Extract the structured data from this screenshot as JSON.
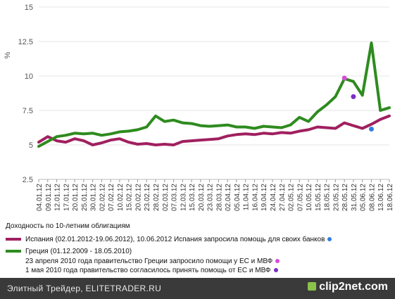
{
  "chart_data": {
    "type": "line",
    "title": "",
    "ylabel": "%",
    "ylim": [
      2.5,
      15
    ],
    "yticks": [
      2.5,
      5,
      7.5,
      10,
      12.5,
      15
    ],
    "grid": true,
    "categories": [
      "04.01.12",
      "09.01.12",
      "12.01.12",
      "17.01.12",
      "20.01.12",
      "25.01.12",
      "30.01.12",
      "02.02.12",
      "07.02.12",
      "10.02.12",
      "15.02.12",
      "20.02.12",
      "23.02.12",
      "28.02.12",
      "02.03.12",
      "07.03.12",
      "12.03.12",
      "15.03.12",
      "20.03.12",
      "23.03.12",
      "28.03.12",
      "02.04.12",
      "05.04.12",
      "11.04.12",
      "16.04.12",
      "19.04.12",
      "24.04.12",
      "27.04.12",
      "02.05.12",
      "07.05.12",
      "10.05.12",
      "15.05.12",
      "18.05.12",
      "23.05.12",
      "28.05.12",
      "31.05.12",
      "05.06.12",
      "08.06.12",
      "13.06.12",
      "18.06.12"
    ],
    "series": [
      {
        "name": "Испания (02.01.2012-19.06.2012), 10.06.2012 Испания запросила помощь для своих банков",
        "color": "#a0205f",
        "values": [
          5.2,
          5.6,
          5.3,
          5.2,
          5.45,
          5.3,
          5.0,
          5.15,
          5.35,
          5.45,
          5.2,
          5.05,
          5.1,
          5.0,
          5.05,
          5.0,
          5.25,
          5.3,
          5.35,
          5.4,
          5.45,
          5.65,
          5.75,
          5.8,
          5.75,
          5.85,
          5.8,
          5.9,
          5.85,
          6.0,
          6.1,
          6.3,
          6.25,
          6.2,
          6.6,
          6.4,
          6.2,
          6.5,
          6.85,
          7.1
        ]
      },
      {
        "name": "Греция (01.12.2009 - 18.05.2010)",
        "color": "#2e8b1f",
        "values": [
          4.9,
          5.25,
          5.6,
          5.7,
          5.85,
          5.8,
          5.85,
          5.7,
          5.8,
          5.95,
          6.0,
          6.1,
          6.3,
          7.1,
          6.7,
          6.8,
          6.6,
          6.55,
          6.4,
          6.35,
          6.4,
          6.45,
          6.3,
          6.3,
          6.2,
          6.35,
          6.3,
          6.25,
          6.45,
          7.0,
          6.7,
          7.4,
          7.9,
          8.5,
          9.8,
          9.6,
          8.6,
          12.4,
          7.5,
          7.7
        ]
      }
    ],
    "markers": [
      {
        "label": "23 апреля 2010 года правительство Греции запросило помощи у ЕС и МВФ",
        "category": "28.05.12",
        "value": 9.85,
        "color": "#d94bd9"
      },
      {
        "label": "1 мая 2010 года правительство согласилось принять помощь от ЕС и МВФ",
        "category": "31.05.12",
        "value": 8.5,
        "color": "#7a2fc4"
      },
      {
        "label": "10.06.2012 Испания запросила помощь для своих банков",
        "category": "08.06.12",
        "value": 6.15,
        "color": "#2f7fe0"
      }
    ]
  },
  "legend": {
    "heading": "Доходность по 10-летним облигациям",
    "spain_label": "Испания (02.01.2012-19.06.2012), 10.06.2012 Испания запросила помощь для своих банков",
    "spain_dot_color": "#2f7fe0",
    "greece_label": "Греция (01.12.2009 - 18.05.2010)",
    "greece_note_1": "23 апреля 2010 года правительство Греции запросило помощи у ЕС и МВФ",
    "greece_note_1_color": "#d94bd9",
    "greece_note_2": "1 мая 2010 года правительство согласилось принять помощь от ЕС и МВФ",
    "greece_note_2_color": "#7a2fc4"
  },
  "footer": {
    "text": "Элитный Трейдер, ELITETRADER.RU",
    "brand": "clip2net.com"
  }
}
